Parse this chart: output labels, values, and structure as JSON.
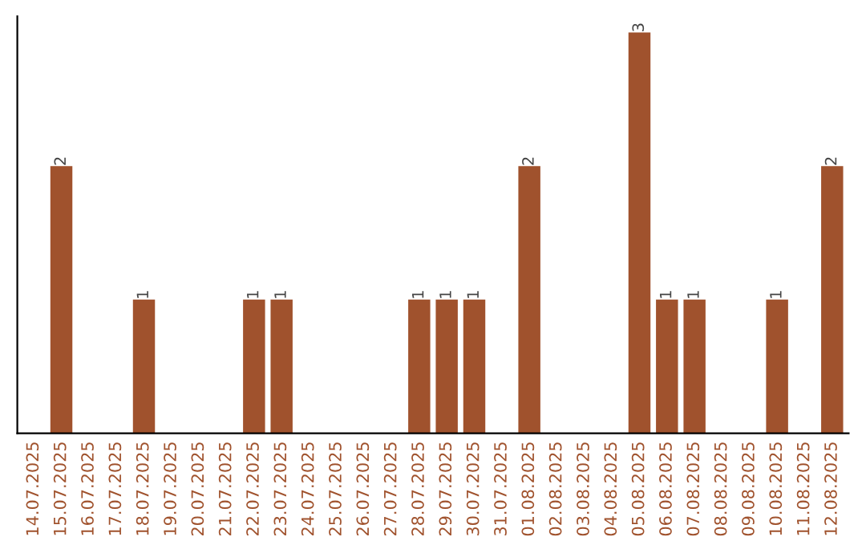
{
  "chart_data": {
    "type": "bar",
    "categories": [
      "14.07.2025",
      "15.07.2025",
      "16.07.2025",
      "17.07.2025",
      "18.07.2025",
      "19.07.2025",
      "20.07.2025",
      "21.07.2025",
      "22.07.2025",
      "23.07.2025",
      "24.07.2025",
      "25.07.2025",
      "26.07.2025",
      "27.07.2025",
      "28.07.2025",
      "29.07.2025",
      "30.07.2025",
      "31.07.2025",
      "01.08.2025",
      "02.08.2025",
      "03.08.2025",
      "04.08.2025",
      "05.08.2025",
      "06.08.2025",
      "07.08.2025",
      "08.08.2025",
      "09.08.2025",
      "10.08.2025",
      "11.08.2025",
      "12.08.2025"
    ],
    "values": [
      0,
      2,
      0,
      0,
      1,
      0,
      0,
      0,
      1,
      1,
      0,
      0,
      0,
      0,
      1,
      1,
      1,
      0,
      2,
      0,
      0,
      0,
      3,
      1,
      1,
      0,
      0,
      1,
      0,
      2
    ],
    "value_labels": [
      null,
      "2",
      null,
      null,
      "1",
      null,
      null,
      null,
      "1",
      "1",
      null,
      null,
      null,
      null,
      "1",
      "1",
      "1",
      null,
      "2",
      null,
      null,
      null,
      "3",
      "1",
      "1",
      null,
      null,
      "1",
      null,
      "2"
    ],
    "color": "#a0522d",
    "tick_labels": "x",
    "grid": false,
    "legend": false
  }
}
